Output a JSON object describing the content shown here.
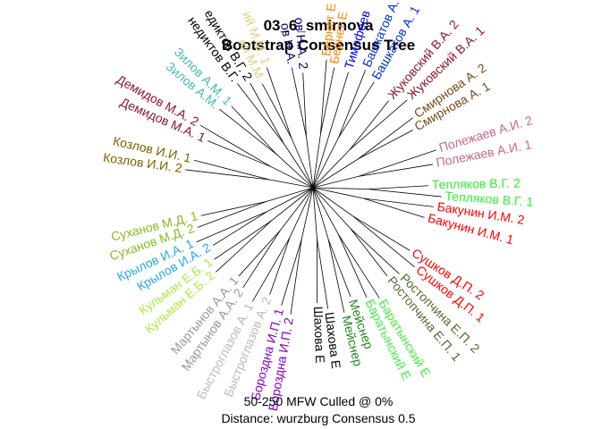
{
  "title": {
    "line1": "03_6_smirnova",
    "line2": "Bootstrap Consensus Tree"
  },
  "footer": {
    "line1": "50-250 MFW  Culled @ 0%",
    "line2": "Distance: wurzburg Consensus 0.5"
  },
  "tree": {
    "type": "unrooted consensus tree",
    "leaves": [
      {
        "label": "Бакунин И.М. 1",
        "color": "#ff0000"
      },
      {
        "label": "Бакунин И.М. 2",
        "color": "#ff0000"
      },
      {
        "label": "Тепляков В.Г. 1",
        "color": "#33ee33"
      },
      {
        "label": "Тепляков В.Г. 2",
        "color": "#33ee33"
      },
      {
        "label": "Полежаев А.И. 1",
        "color": "#cc6688"
      },
      {
        "label": "Полежаев А.И. 2",
        "color": "#cc6688"
      },
      {
        "label": "Смирнова А. 1",
        "color": "#7a4a1a"
      },
      {
        "label": "Смирнова А. 2",
        "color": "#7a4a1a"
      },
      {
        "label": "Жуковский В.А. 1",
        "color": "#8b1a2a"
      },
      {
        "label": "Жуковский В.А. 2",
        "color": "#8b1a2a"
      },
      {
        "label": "Башкатов А. 1",
        "color": "#0033cc"
      },
      {
        "label": "Башкатов А. 2",
        "color": "#0033cc"
      },
      {
        "label": "Тимофеев",
        "color": "#0000ee"
      },
      {
        "label": "Бернет Е",
        "color": "#ff8800"
      },
      {
        "label": "Бернет Е",
        "color": "#ff8800"
      },
      {
        "label": "ов Н.А. 2",
        "color": "#000066"
      },
      {
        "label": "ов Н.А.",
        "color": "#000066"
      },
      {
        "label": "ий М.М. 1",
        "color": "#e0d080"
      },
      {
        "label": "ий М.М.",
        "color": "#e0d080"
      },
      {
        "label": "едиктов В.Г. 2",
        "color": "#000000"
      },
      {
        "label": "недиктов В.Г.",
        "color": "#000000"
      },
      {
        "label": "Зилов А.М. 1",
        "color": "#44bbbb"
      },
      {
        "label": "Зилов А.М.",
        "color": "#44bbbb"
      },
      {
        "label": "Демидов М.А. 2",
        "color": "#8b1a2a"
      },
      {
        "label": "Демидов М.А. 1",
        "color": "#8b1a2a"
      },
      {
        "label": "Козлов И.И. 1",
        "color": "#806000"
      },
      {
        "label": "Козлов И.И. 2",
        "color": "#806000"
      },
      {
        "label": "Суханов М.Д. 1",
        "color": "#88bb22"
      },
      {
        "label": "Суханов М.Д. 2",
        "color": "#88bb22"
      },
      {
        "label": "Крылов И.А. 1",
        "color": "#22aaee"
      },
      {
        "label": "Крылов И.А. 2",
        "color": "#22aaee"
      },
      {
        "label": "Кульман Е.Б. 1",
        "color": "#aaee44"
      },
      {
        "label": "Кульман Е.Б. 2",
        "color": "#aaee44"
      },
      {
        "label": "Мартынов А.А. 1",
        "color": "#999999"
      },
      {
        "label": "Мартынов А.А. 2",
        "color": "#999999"
      },
      {
        "label": "Быстроглазов А. 1",
        "color": "#bbbbbb"
      },
      {
        "label": "Быстроглазов А. 2",
        "color": "#bbbbbb"
      },
      {
        "label": "Бороздна И.П. 1",
        "color": "#8800cc"
      },
      {
        "label": "Бороздна И.П. 2",
        "color": "#8800cc"
      },
      {
        "label": "Шахова Е",
        "color": "#000000"
      },
      {
        "label": "Шахова Е",
        "color": "#000000"
      },
      {
        "label": "Мейснер",
        "color": "#228822"
      },
      {
        "label": "Мейснер",
        "color": "#228822"
      },
      {
        "label": "Баратынский Е",
        "color": "#44ee44"
      },
      {
        "label": "Баратынский Е",
        "color": "#44ee44"
      },
      {
        "label": "Ростопчина Е.П. 1",
        "color": "#556b2f"
      },
      {
        "label": "Ростопчина Е.П. 2",
        "color": "#556b2f"
      },
      {
        "label": "Сушков Д.П. 1",
        "color": "#ff0000"
      },
      {
        "label": "Сушков Д.П. 2",
        "color": "#ff0000"
      }
    ]
  }
}
